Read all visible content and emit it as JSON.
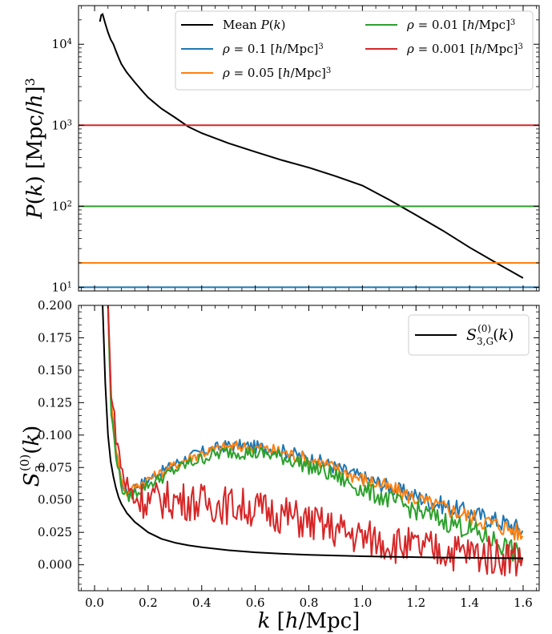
{
  "chart_data": [
    {
      "type": "line",
      "ylabel": "P(k) [Mpc/h]^3",
      "yscale": "log",
      "xlim": [
        -0.06,
        1.66
      ],
      "ylim": [
        9,
        30000
      ],
      "yticks": [
        10,
        100,
        1000,
        10000
      ],
      "yticklabels": [
        "10",
        "10",
        "10",
        "10"
      ],
      "ytick_exponents": [
        "1",
        "2",
        "3",
        "4"
      ],
      "legend_position": "top-right",
      "series": [
        {
          "name": "Mean P(k)",
          "color": "#000000",
          "x": [
            0.02,
            0.025,
            0.03,
            0.04,
            0.05,
            0.06,
            0.07,
            0.08,
            0.09,
            0.1,
            0.12,
            0.15,
            0.18,
            0.2,
            0.25,
            0.3,
            0.35,
            0.4,
            0.5,
            0.6,
            0.7,
            0.8,
            0.9,
            1.0,
            1.1,
            1.2,
            1.3,
            1.4,
            1.5,
            1.6
          ],
          "y": [
            19000,
            23000,
            23500,
            18000,
            14000,
            11500,
            10000,
            8200,
            6800,
            5700,
            4500,
            3400,
            2600,
            2200,
            1600,
            1250,
            960,
            800,
            600,
            470,
            370,
            300,
            235,
            180,
            120,
            78,
            50,
            31,
            20,
            13
          ]
        },
        {
          "name": "ρ = 0.1 [h/Mpc]^3",
          "color": "#1f77b4",
          "constant": 10
        },
        {
          "name": "ρ = 0.05 [h/Mpc]^3",
          "color": "#ff7f0e",
          "constant": 20
        },
        {
          "name": "ρ = 0.01 [h/Mpc]^3",
          "color": "#2ca02c",
          "constant": 100
        },
        {
          "name": "ρ = 0.001 [h/Mpc]^3",
          "color": "#d62728",
          "constant": 1000
        }
      ]
    },
    {
      "type": "line",
      "xlabel": "k [h/Mpc]",
      "ylabel": "S_3^(0)(k)",
      "xlim": [
        -0.06,
        1.66
      ],
      "ylim": [
        -0.02,
        0.2
      ],
      "xticks": [
        0.0,
        0.2,
        0.4,
        0.6,
        0.8,
        1.0,
        1.2,
        1.4,
        1.6
      ],
      "xticklabels": [
        "0.0",
        "0.2",
        "0.4",
        "0.6",
        "0.8",
        "1.0",
        "1.2",
        "1.4",
        "1.6"
      ],
      "yticks": [
        0.0,
        0.025,
        0.05,
        0.075,
        0.1,
        0.125,
        0.15,
        0.175,
        0.2
      ],
      "yticklabels": [
        "0.000",
        "0.025",
        "0.050",
        "0.075",
        "0.100",
        "0.125",
        "0.150",
        "0.175",
        "0.200"
      ],
      "legend_position": "top-right",
      "series": [
        {
          "name": "ρ = 0.1 [h/Mpc]^3",
          "color": "#1f77b4",
          "x": [
            0.05,
            0.06,
            0.08,
            0.1,
            0.12,
            0.15,
            0.2,
            0.25,
            0.3,
            0.35,
            0.4,
            0.45,
            0.5,
            0.55,
            0.6,
            0.65,
            0.7,
            0.75,
            0.8,
            0.85,
            0.9,
            0.95,
            1.0,
            1.05,
            1.1,
            1.15,
            1.2,
            1.25,
            1.3,
            1.35,
            1.4,
            1.45,
            1.5,
            1.55,
            1.6
          ],
          "y": [
            0.2,
            0.13,
            0.09,
            0.065,
            0.055,
            0.06,
            0.066,
            0.072,
            0.078,
            0.083,
            0.087,
            0.09,
            0.092,
            0.092,
            0.091,
            0.09,
            0.088,
            0.085,
            0.082,
            0.079,
            0.075,
            0.071,
            0.067,
            0.064,
            0.06,
            0.056,
            0.053,
            0.049,
            0.046,
            0.043,
            0.04,
            0.037,
            0.034,
            0.031,
            0.026
          ]
        },
        {
          "name": "ρ = 0.05 [h/Mpc]^3",
          "color": "#ff7f0e",
          "x": [
            0.05,
            0.06,
            0.08,
            0.1,
            0.12,
            0.15,
            0.2,
            0.25,
            0.3,
            0.35,
            0.4,
            0.45,
            0.5,
            0.55,
            0.6,
            0.65,
            0.7,
            0.75,
            0.8,
            0.85,
            0.9,
            0.95,
            1.0,
            1.05,
            1.1,
            1.15,
            1.2,
            1.25,
            1.3,
            1.35,
            1.4,
            1.45,
            1.5,
            1.55,
            1.6
          ],
          "y": [
            0.2,
            0.13,
            0.09,
            0.065,
            0.055,
            0.06,
            0.066,
            0.071,
            0.077,
            0.082,
            0.086,
            0.089,
            0.091,
            0.091,
            0.09,
            0.089,
            0.087,
            0.084,
            0.081,
            0.078,
            0.074,
            0.07,
            0.066,
            0.063,
            0.059,
            0.055,
            0.051,
            0.047,
            0.044,
            0.041,
            0.037,
            0.034,
            0.031,
            0.028,
            0.022
          ]
        },
        {
          "name": "ρ = 0.01 [h/Mpc]^3",
          "color": "#2ca02c",
          "x": [
            0.05,
            0.06,
            0.08,
            0.1,
            0.12,
            0.15,
            0.2,
            0.25,
            0.3,
            0.35,
            0.4,
            0.45,
            0.5,
            0.55,
            0.6,
            0.65,
            0.7,
            0.75,
            0.8,
            0.85,
            0.9,
            0.95,
            1.0,
            1.05,
            1.1,
            1.15,
            1.2,
            1.25,
            1.3,
            1.35,
            1.4,
            1.45,
            1.5,
            1.55,
            1.6
          ],
          "y": [
            0.2,
            0.12,
            0.085,
            0.06,
            0.052,
            0.055,
            0.062,
            0.067,
            0.073,
            0.078,
            0.082,
            0.085,
            0.087,
            0.087,
            0.086,
            0.085,
            0.083,
            0.08,
            0.076,
            0.072,
            0.068,
            0.063,
            0.058,
            0.054,
            0.05,
            0.046,
            0.042,
            0.038,
            0.034,
            0.031,
            0.027,
            0.022,
            0.018,
            0.012,
            0.004
          ]
        },
        {
          "name": "ρ = 0.001 [h/Mpc]^3",
          "color": "#d62728",
          "x": [
            0.05,
            0.06,
            0.08,
            0.1,
            0.12,
            0.15,
            0.2,
            0.25,
            0.3,
            0.35,
            0.4,
            0.45,
            0.5,
            0.55,
            0.6,
            0.65,
            0.7,
            0.75,
            0.8,
            0.85,
            0.9,
            0.95,
            1.0,
            1.05,
            1.1,
            1.15,
            1.2,
            1.25,
            1.3,
            1.35,
            1.4,
            1.45,
            1.5,
            1.55,
            1.6
          ],
          "y": [
            0.2,
            0.14,
            0.1,
            0.075,
            0.06,
            0.052,
            0.05,
            0.05,
            0.05,
            0.049,
            0.048,
            0.047,
            0.046,
            0.045,
            0.043,
            0.041,
            0.039,
            0.036,
            0.033,
            0.03,
            0.027,
            0.024,
            0.021,
            0.019,
            0.017,
            0.015,
            0.013,
            0.012,
            0.011,
            0.01,
            0.009,
            0.008,
            0.007,
            0.006,
            0.005
          ]
        },
        {
          "name": "S_3,G^(0)(k)",
          "color": "#000000",
          "x": [
            0.03,
            0.04,
            0.05,
            0.06,
            0.07,
            0.08,
            0.09,
            0.1,
            0.12,
            0.15,
            0.2,
            0.25,
            0.3,
            0.35,
            0.4,
            0.5,
            0.6,
            0.7,
            0.8,
            0.9,
            1.0,
            1.1,
            1.2,
            1.3,
            1.4,
            1.5,
            1.6
          ],
          "y": [
            0.2,
            0.14,
            0.1,
            0.08,
            0.068,
            0.059,
            0.052,
            0.047,
            0.04,
            0.033,
            0.025,
            0.02,
            0.017,
            0.015,
            0.0135,
            0.0112,
            0.0096,
            0.0085,
            0.0077,
            0.0071,
            0.0066,
            0.0062,
            0.0059,
            0.0056,
            0.0054,
            0.0052,
            0.005
          ]
        }
      ]
    }
  ]
}
